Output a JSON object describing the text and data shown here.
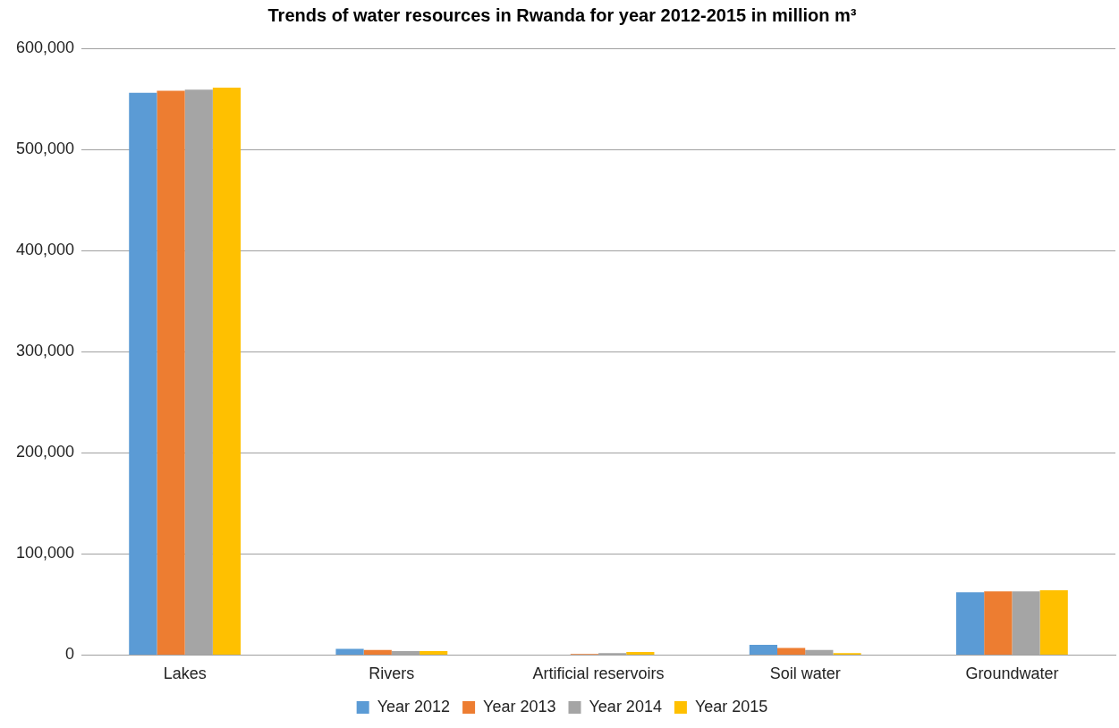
{
  "chart_data": {
    "type": "bar",
    "title": "Trends of water resources in Rwanda for year 2012-2015 in million m³",
    "categories": [
      "Lakes",
      "Rivers",
      "Artificial reservoirs",
      "Soil water",
      "Groundwater"
    ],
    "series": [
      {
        "name": "Year 2012",
        "color": "#5b9bd5",
        "values": [
          556000,
          6000,
          0,
          10000,
          62000
        ]
      },
      {
        "name": "Year 2013",
        "color": "#ed7d31",
        "values": [
          558000,
          5000,
          1000,
          7000,
          63000
        ]
      },
      {
        "name": "Year 2014",
        "color": "#a5a5a5",
        "values": [
          559000,
          4000,
          2000,
          5000,
          63000
        ]
      },
      {
        "name": "Year 2015",
        "color": "#ffc000",
        "values": [
          561000,
          4000,
          3000,
          2000,
          64000
        ]
      }
    ],
    "ylim": [
      0,
      600000
    ],
    "yticks": [
      0,
      {
        "value": 100000,
        "label": "100,000"
      },
      {
        "value": 200000,
        "label": "200,000"
      },
      {
        "value": 300000,
        "label": "300,000"
      },
      {
        "value": 400000,
        "label": "400,000"
      },
      {
        "value": 500000,
        "label": "500,000"
      },
      {
        "value": 600000,
        "label": "600,000"
      }
    ],
    "grid": "y",
    "legend": "bottom"
  }
}
